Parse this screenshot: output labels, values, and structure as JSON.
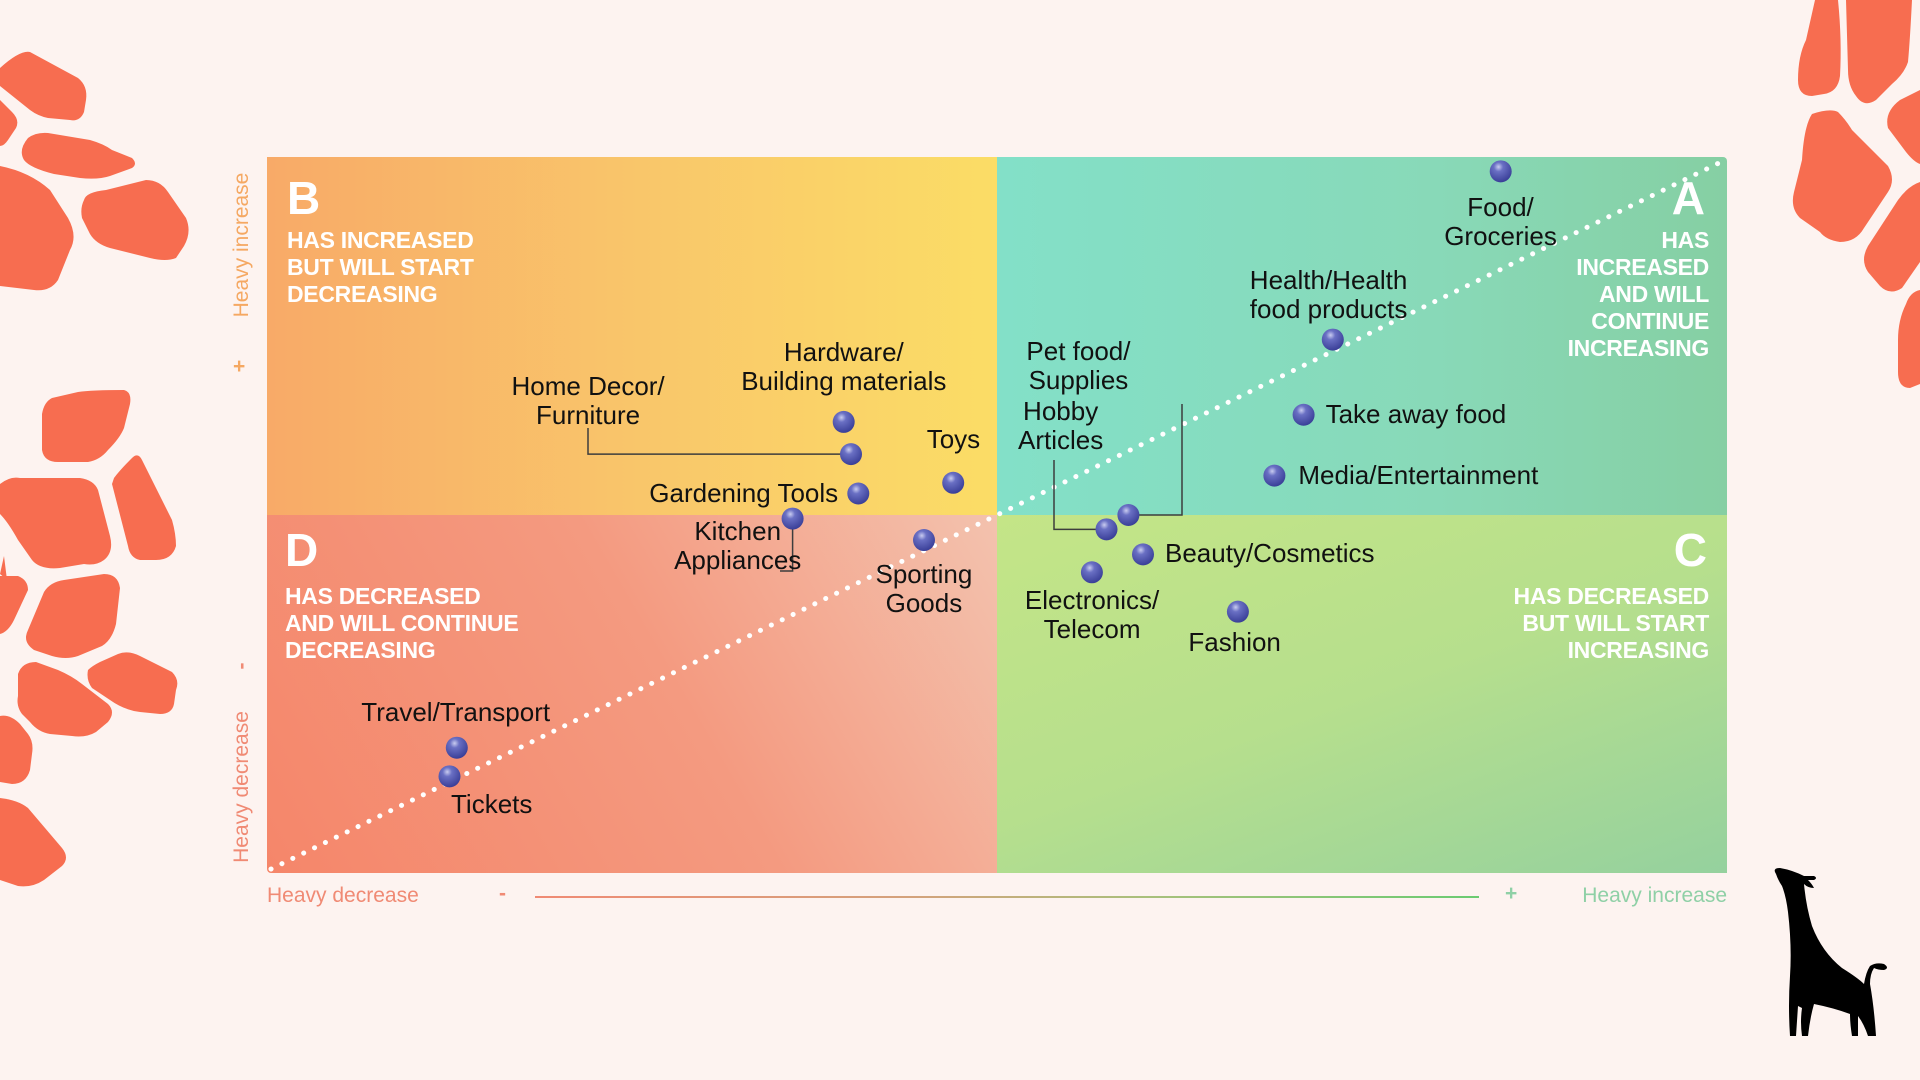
{
  "colors": {
    "background": "#FDF3F0",
    "spots": "#F76D50",
    "dot": "#4E56B0",
    "label_text": "#111111",
    "quadrant_text": "#FFFFFF",
    "axis_decrease": "#F08A74",
    "axis_increase_y": "#F5A862",
    "axis_increase_x": "#8FD0A6"
  },
  "logo": {
    "icon": "giraffe-silhouette-icon"
  },
  "chart_data": {
    "type": "scatter",
    "title": "",
    "xlabel_left": "Heavy decrease",
    "xlabel_right": "Heavy increase",
    "x_minus": "-",
    "x_plus": "+",
    "ylabel_top": "Heavy increase",
    "ylabel_bottom": "Heavy decrease",
    "y_plus": "+",
    "y_minus": "-",
    "xlim": [
      -1,
      1
    ],
    "ylim": [
      -1,
      1
    ],
    "grid": false,
    "reference_line": "diagonal dotted y = x",
    "quadrants": [
      {
        "id": "A",
        "letter": "A",
        "text": "HAS\nINCREASED\nAND WILL\nCONTINUE\nINCREASING"
      },
      {
        "id": "B",
        "letter": "B",
        "text": "HAS INCREASED\nBUT WILL START\nDECREASING"
      },
      {
        "id": "C",
        "letter": "C",
        "text": "HAS DECREASED\nBUT WILL START\nINCREASING"
      },
      {
        "id": "D",
        "letter": "D",
        "text": "HAS DECREASED\nAND WILL CONTINUE\nDECREASING"
      }
    ],
    "points": [
      {
        "label": "Food/\nGroceries",
        "x": 0.69,
        "y": 0.96
      },
      {
        "label": "Health/Health\nfood products",
        "x": 0.46,
        "y": 0.49
      },
      {
        "label": "Take away food",
        "x": 0.42,
        "y": 0.28
      },
      {
        "label": "Media/Entertainment",
        "x": 0.38,
        "y": 0.11
      },
      {
        "label": "Pet food/\nSupplies",
        "x": 0.18,
        "y": 0.0
      },
      {
        "label": "Hobby\nArticles",
        "x": 0.15,
        "y": -0.04
      },
      {
        "label": "Beauty/Cosmetics",
        "x": 0.2,
        "y": -0.11
      },
      {
        "label": "Electronics/\nTelecom",
        "x": 0.13,
        "y": -0.16
      },
      {
        "label": "Fashion",
        "x": 0.33,
        "y": -0.27
      },
      {
        "label": "Hardware/\nBuilding materials",
        "x": -0.21,
        "y": 0.26
      },
      {
        "label": "Home Decor/\nFurniture",
        "x": -0.2,
        "y": 0.17
      },
      {
        "label": "Gardening Tools",
        "x": -0.19,
        "y": 0.06
      },
      {
        "label": "Toys",
        "x": -0.06,
        "y": 0.09
      },
      {
        "label": "Kitchen\nAppliances",
        "x": -0.28,
        "y": -0.01
      },
      {
        "label": "Sporting\nGoods",
        "x": -0.1,
        "y": -0.07
      },
      {
        "label": "Travel/Transport",
        "x": -0.74,
        "y": -0.65
      },
      {
        "label": "Tickets",
        "x": -0.75,
        "y": -0.73
      }
    ]
  }
}
